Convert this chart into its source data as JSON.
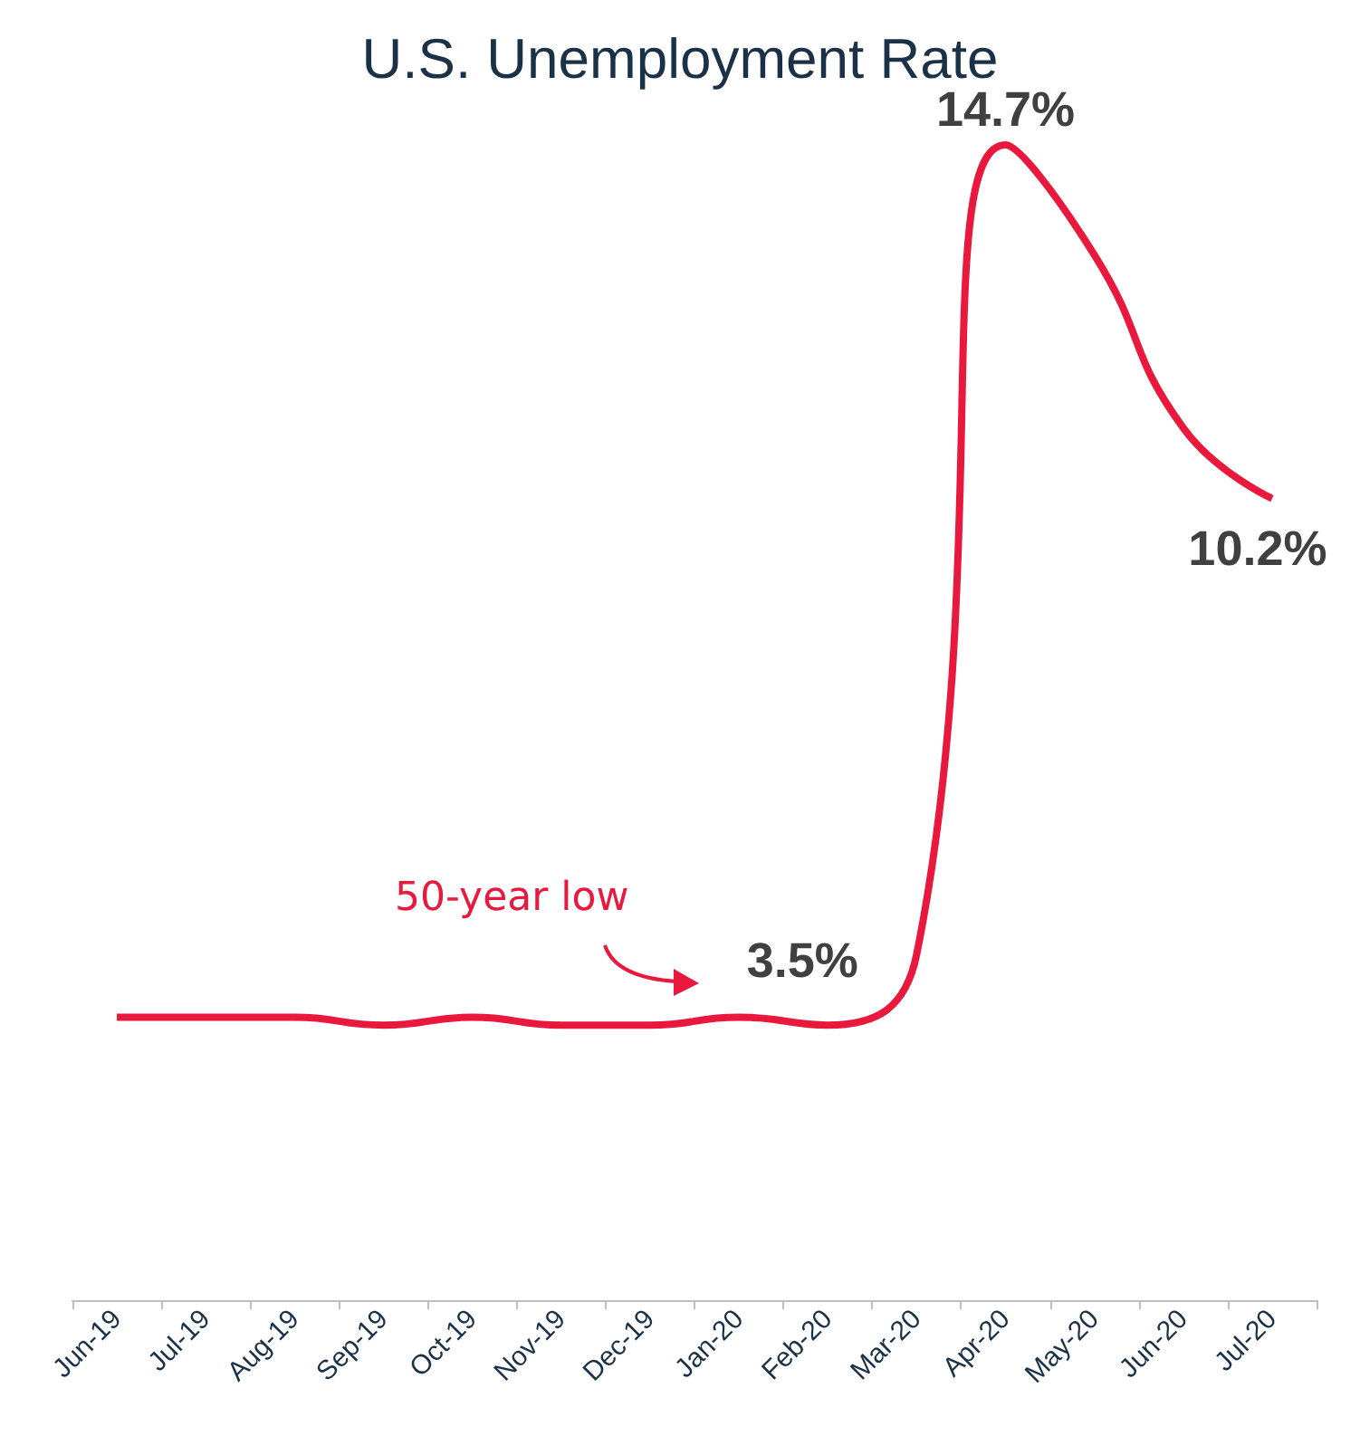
{
  "chart_data": {
    "type": "line",
    "title": "U.S. Unemployment Rate",
    "categories": [
      "Jun-19",
      "Jul-19",
      "Aug-19",
      "Sep-19",
      "Oct-19",
      "Nov-19",
      "Dec-19",
      "Jan-20",
      "Feb-20",
      "Mar-20",
      "Apr-20",
      "May-20",
      "Jun-20",
      "Jul-20"
    ],
    "series": [
      {
        "color": "#e8193c",
        "values": [
          3.6,
          3.6,
          3.6,
          3.5,
          3.6,
          3.5,
          3.5,
          3.6,
          3.5,
          4.4,
          14.7,
          13.3,
          11.1,
          10.2
        ],
        "value_labels": [
          null,
          null,
          null,
          null,
          null,
          null,
          null,
          null,
          "3.5%",
          null,
          "14.7%",
          null,
          null,
          "10.2%"
        ]
      }
    ],
    "annotations": [
      "50-year low"
    ],
    "marker": "none",
    "grid": false
  }
}
